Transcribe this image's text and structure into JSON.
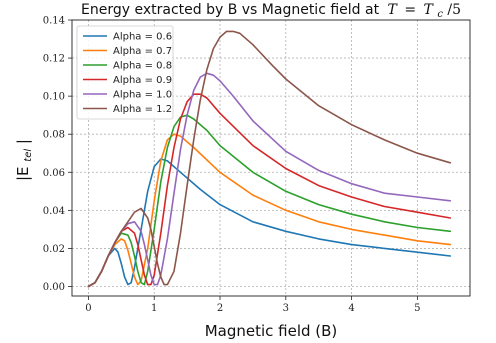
{
  "chart_data": {
    "type": "line",
    "title": "Energy extracted by B vs Magnetic field at T = T_c/5",
    "title_text": "Energy extracted by B vs Magnetic field at",
    "title_math_lhs": "T",
    "title_math_rhs": "T",
    "title_math_sub": "c",
    "title_math_den": "/5",
    "xlabel": "Magnetic field (B)",
    "ylabel": "|E_tel|",
    "ylabel_main": "|E",
    "ylabel_sub": "tel",
    "ylabel_end": "|",
    "xlim": [
      -0.25,
      5.8
    ],
    "ylim": [
      -0.005,
      0.14
    ],
    "x_ticks": [
      0,
      1,
      2,
      3,
      4,
      5
    ],
    "x_tick_labels": [
      "0",
      "1",
      "2",
      "3",
      "4",
      "5"
    ],
    "y_ticks": [
      0.0,
      0.02,
      0.04,
      0.06,
      0.08,
      0.1,
      0.12,
      0.14
    ],
    "y_tick_labels": [
      "0.00",
      "0.02",
      "0.04",
      "0.06",
      "0.08",
      "0.10",
      "0.12",
      "0.14"
    ],
    "grid": true,
    "legend_position": "top-left",
    "series": [
      {
        "name": "Alpha = 0.6",
        "color": "#1f77b4",
        "x": [
          0,
          0.1,
          0.2,
          0.3,
          0.4,
          0.45,
          0.5,
          0.55,
          0.6,
          0.65,
          0.7,
          0.8,
          0.9,
          1.0,
          1.1,
          1.2,
          1.4,
          1.7,
          2.0,
          2.5,
          3.0,
          3.5,
          4.0,
          4.5,
          5.0,
          5.5
        ],
        "y": [
          0,
          0.002,
          0.008,
          0.016,
          0.02,
          0.018,
          0.012,
          0.005,
          0.001,
          0.002,
          0.01,
          0.03,
          0.05,
          0.063,
          0.067,
          0.066,
          0.06,
          0.051,
          0.043,
          0.034,
          0.029,
          0.025,
          0.022,
          0.02,
          0.018,
          0.016
        ]
      },
      {
        "name": "Alpha = 0.7",
        "color": "#ff7f0e",
        "x": [
          0,
          0.1,
          0.2,
          0.3,
          0.4,
          0.5,
          0.55,
          0.6,
          0.65,
          0.7,
          0.75,
          0.8,
          0.9,
          1.0,
          1.1,
          1.2,
          1.3,
          1.4,
          1.6,
          2.0,
          2.5,
          3.0,
          3.5,
          4.0,
          4.5,
          5.0,
          5.5
        ],
        "y": [
          0,
          0.002,
          0.008,
          0.016,
          0.022,
          0.025,
          0.024,
          0.019,
          0.012,
          0.005,
          0.001,
          0.003,
          0.02,
          0.045,
          0.066,
          0.077,
          0.08,
          0.079,
          0.073,
          0.06,
          0.048,
          0.04,
          0.034,
          0.03,
          0.027,
          0.024,
          0.022
        ]
      },
      {
        "name": "Alpha = 0.8",
        "color": "#2ca02c",
        "x": [
          0,
          0.1,
          0.2,
          0.3,
          0.4,
          0.5,
          0.6,
          0.65,
          0.7,
          0.75,
          0.8,
          0.85,
          0.9,
          1.0,
          1.1,
          1.2,
          1.3,
          1.4,
          1.5,
          1.6,
          1.8,
          2.0,
          2.5,
          3.0,
          3.5,
          4.0,
          4.5,
          5.0,
          5.5
        ],
        "y": [
          0,
          0.002,
          0.008,
          0.016,
          0.023,
          0.028,
          0.027,
          0.023,
          0.016,
          0.008,
          0.002,
          0.001,
          0.008,
          0.03,
          0.055,
          0.073,
          0.084,
          0.089,
          0.09,
          0.088,
          0.082,
          0.074,
          0.06,
          0.05,
          0.043,
          0.038,
          0.034,
          0.031,
          0.029
        ]
      },
      {
        "name": "Alpha = 0.9",
        "color": "#d62728",
        "x": [
          0,
          0.1,
          0.2,
          0.3,
          0.4,
          0.5,
          0.6,
          0.7,
          0.75,
          0.8,
          0.85,
          0.9,
          0.95,
          1.0,
          1.1,
          1.2,
          1.3,
          1.4,
          1.5,
          1.6,
          1.7,
          1.8,
          2.0,
          2.5,
          3.0,
          3.5,
          4.0,
          4.5,
          5.0,
          5.5
        ],
        "y": [
          0,
          0.002,
          0.008,
          0.016,
          0.023,
          0.029,
          0.031,
          0.028,
          0.022,
          0.014,
          0.006,
          0.001,
          0.001,
          0.006,
          0.028,
          0.053,
          0.073,
          0.088,
          0.097,
          0.101,
          0.101,
          0.099,
          0.091,
          0.074,
          0.062,
          0.053,
          0.047,
          0.042,
          0.039,
          0.036
        ]
      },
      {
        "name": "Alpha = 1.0",
        "color": "#9467bd",
        "x": [
          0,
          0.1,
          0.2,
          0.3,
          0.4,
          0.5,
          0.6,
          0.7,
          0.8,
          0.85,
          0.9,
          0.95,
          1.0,
          1.05,
          1.1,
          1.2,
          1.3,
          1.4,
          1.5,
          1.6,
          1.7,
          1.8,
          1.9,
          2.0,
          2.2,
          2.5,
          3.0,
          3.5,
          4.0,
          4.5,
          5.0,
          5.5
        ],
        "y": [
          0,
          0.002,
          0.008,
          0.016,
          0.023,
          0.029,
          0.033,
          0.034,
          0.029,
          0.022,
          0.014,
          0.006,
          0.001,
          0.001,
          0.006,
          0.025,
          0.049,
          0.072,
          0.09,
          0.103,
          0.11,
          0.112,
          0.111,
          0.108,
          0.1,
          0.087,
          0.071,
          0.061,
          0.054,
          0.049,
          0.047,
          0.045
        ]
      },
      {
        "name": "Alpha = 1.2",
        "color": "#8c564b",
        "x": [
          0,
          0.1,
          0.2,
          0.3,
          0.4,
          0.5,
          0.6,
          0.7,
          0.8,
          0.9,
          0.95,
          1.0,
          1.05,
          1.1,
          1.15,
          1.2,
          1.3,
          1.4,
          1.5,
          1.6,
          1.7,
          1.8,
          1.9,
          2.0,
          2.1,
          2.2,
          2.3,
          2.5,
          2.8,
          3.0,
          3.5,
          4.0,
          4.5,
          5.0,
          5.5
        ],
        "y": [
          0,
          0.002,
          0.008,
          0.016,
          0.023,
          0.029,
          0.034,
          0.039,
          0.041,
          0.036,
          0.03,
          0.021,
          0.012,
          0.005,
          0.001,
          0.001,
          0.008,
          0.028,
          0.053,
          0.077,
          0.098,
          0.114,
          0.125,
          0.131,
          0.134,
          0.134,
          0.133,
          0.127,
          0.116,
          0.109,
          0.095,
          0.085,
          0.077,
          0.07,
          0.065
        ]
      }
    ]
  }
}
